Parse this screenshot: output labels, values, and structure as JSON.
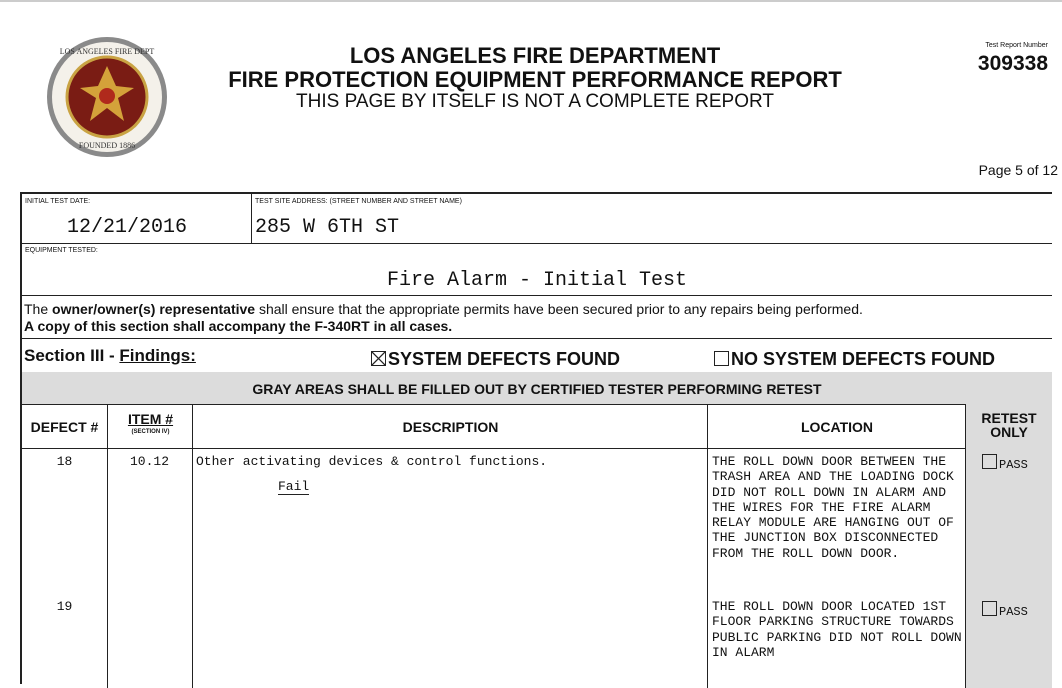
{
  "header": {
    "org": "LOS ANGELES FIRE DEPARTMENT",
    "title": "FIRE PROTECTION EQUIPMENT PERFORMANCE REPORT",
    "subtitle": "THIS PAGE BY ITSELF IS NOT A COMPLETE REPORT",
    "report_number_label": "Test Report Number",
    "report_number": "309338",
    "page": "Page 5 of 12",
    "seal_text": "LOS ANGELES FIRE DEPARTMENT · FOUNDED 1886"
  },
  "fields": {
    "date_label": "INITIAL TEST DATE:",
    "date": "12/21/2016",
    "address_label": "TEST SITE ADDRESS:  (STREET NUMBER AND STREET NAME)",
    "address": "285 W 6TH ST",
    "equipment_label": "EQUIPMENT TESTED:",
    "equipment": "Fire Alarm - Initial Test"
  },
  "notice": {
    "p1": "The ",
    "p1b": "owner/owner(s) representative",
    "p1c": " shall ensure that the appropriate permits have been secured prior to any repairs being performed.",
    "p2": "A copy of this section shall accompany the F-340RT in all cases."
  },
  "section": {
    "label": "Section III - ",
    "findings": "Findings:",
    "defects_found": "SYSTEM DEFECTS FOUND",
    "defects_found_checked": true,
    "no_defects": "NO SYSTEM DEFECTS FOUND",
    "no_defects_checked": false,
    "gray_note": "GRAY AREAS SHALL BE FILLED OUT BY CERTIFIED TESTER PERFORMING RETEST"
  },
  "table": {
    "headers": {
      "defect": "DEFECT #",
      "item": "ITEM #",
      "item_sub": "(SECTION IV)",
      "description": "DESCRIPTION",
      "location": "LOCATION",
      "retest": "RETEST ONLY"
    },
    "pass_label": "PASS",
    "rows": [
      {
        "defect": "18",
        "item": "10.12",
        "description": "Other activating devices & control functions.",
        "result": "Fail",
        "location": "THE ROLL DOWN DOOR BETWEEN THE TRASH AREA AND THE LOADING DOCK DID NOT ROLL DOWN IN ALARM AND THE WIRES FOR THE FIRE ALARM RELAY MODULE ARE HANGING OUT OF THE JUNCTION BOX DISCONNECTED FROM THE ROLL DOWN DOOR."
      },
      {
        "defect": "19",
        "item": "",
        "description": "",
        "result": "",
        "location": "THE ROLL DOWN DOOR LOCATED 1ST FLOOR PARKING STRUCTURE TOWARDS PUBLIC PARKING DID NOT ROLL DOWN IN ALARM"
      }
    ]
  }
}
